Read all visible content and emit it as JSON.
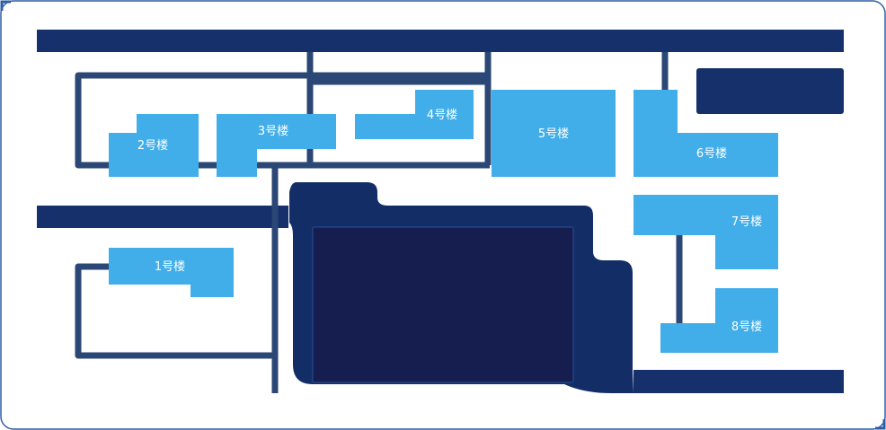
{
  "colors": {
    "building": "#41aeea",
    "road_main": "#15306a",
    "path": "#2b4775",
    "plaza": "#132e67",
    "plaza_inner": "#161d4f",
    "border": "#2c5fa6",
    "background": "#ffffff"
  },
  "buildings": {
    "b1": {
      "label": "1号楼"
    },
    "b2": {
      "label": "2号楼"
    },
    "b3": {
      "label": "3号楼"
    },
    "b4": {
      "label": "4号楼"
    },
    "b5": {
      "label": "5号楼"
    },
    "b6": {
      "label": "6号楼"
    },
    "b7": {
      "label": "7号楼"
    },
    "b8": {
      "label": "8号楼"
    }
  }
}
